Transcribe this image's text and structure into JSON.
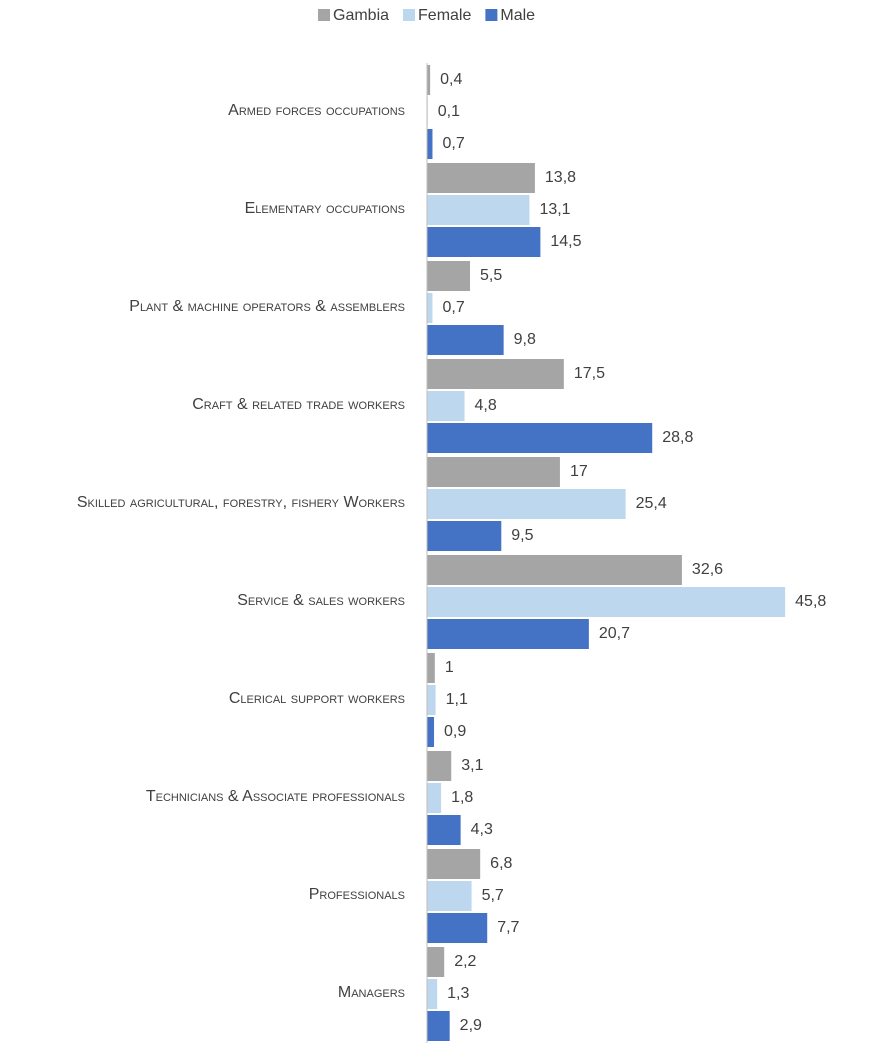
{
  "chart_data": {
    "type": "bar",
    "orientation": "horizontal",
    "categories": [
      "Armed forces occupations",
      "Elementary occupations",
      "Plant & machine operators & assemblers",
      "Craft & related trade workers",
      "Skilled agricultural, forestry, fishery Workers",
      "Service & sales workers",
      "Clerical support workers",
      "Technicians & Associate professionals",
      "Professionals",
      "Managers"
    ],
    "series": [
      {
        "name": "Gambia",
        "color": "#a5a5a5",
        "values": [
          0.4,
          13.8,
          5.5,
          17.5,
          17,
          32.6,
          1,
          3.1,
          6.8,
          2.2
        ],
        "value_labels": [
          "0,4",
          "13,8",
          "5,5",
          "17,5",
          "17",
          "32,6",
          "1",
          "3,1",
          "6,8",
          "2,2"
        ]
      },
      {
        "name": "Female",
        "color": "#bdd7ee",
        "values": [
          0.1,
          13.1,
          0.7,
          4.8,
          25.4,
          45.8,
          1.1,
          1.8,
          5.7,
          1.3
        ],
        "value_labels": [
          "0,1",
          "13,1",
          "0,7",
          "4,8",
          "25,4",
          "45,8",
          "1,1",
          "1,8",
          "5,7",
          "1,3"
        ]
      },
      {
        "name": "Male",
        "color": "#4472c4",
        "values": [
          0.7,
          14.5,
          9.8,
          28.8,
          9.5,
          20.7,
          0.9,
          4.3,
          7.7,
          2.9
        ],
        "value_labels": [
          "0,7",
          "14,5",
          "9,8",
          "28,8",
          "9,5",
          "20,7",
          "0,9",
          "4,3",
          "7,7",
          "2,9"
        ]
      }
    ],
    "xlim": [
      0,
      50
    ],
    "legend": "top"
  }
}
